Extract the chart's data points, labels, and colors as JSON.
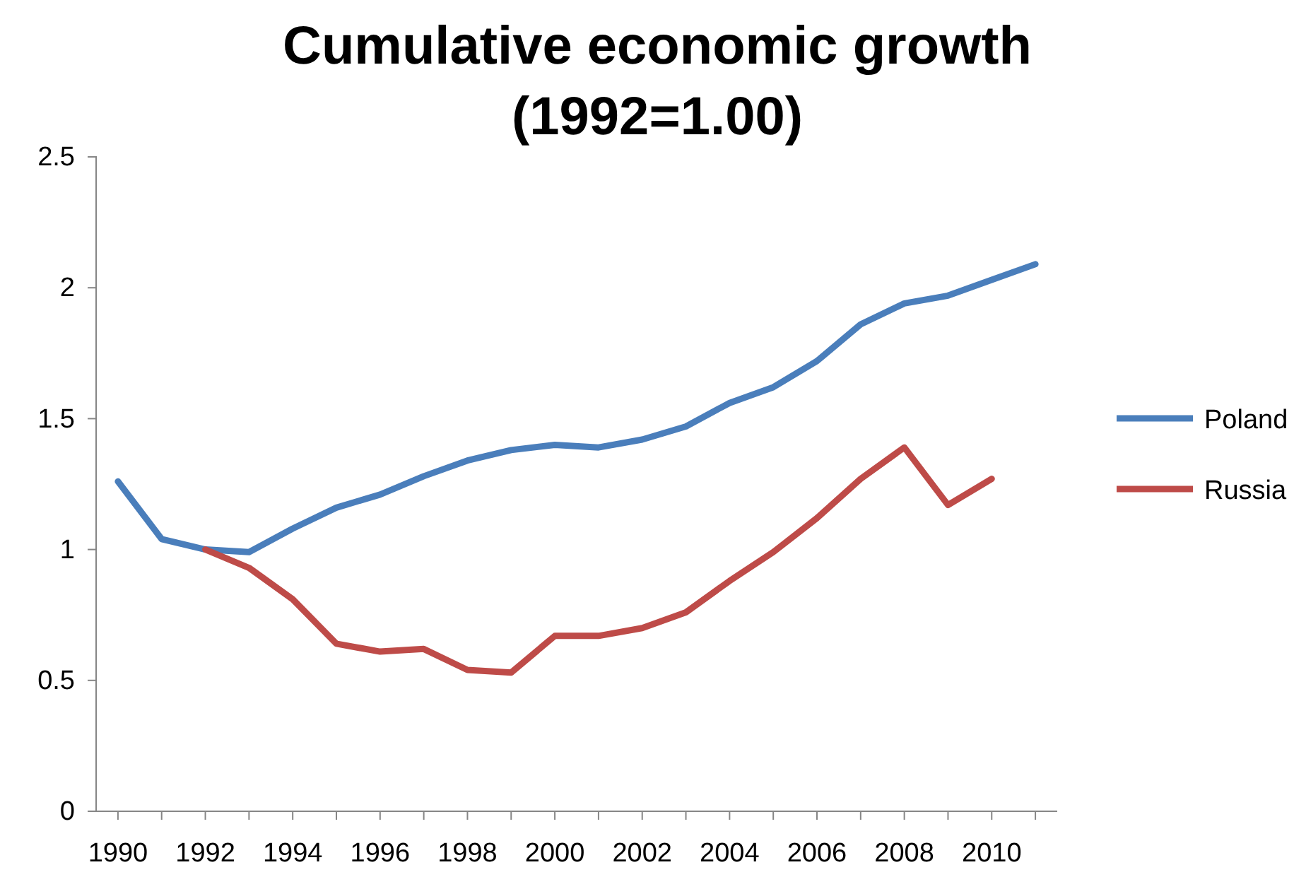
{
  "chart_data": {
    "type": "line",
    "title": "Cumulative economic growth\n(1992=1.00)",
    "categories": [
      "1990",
      null,
      "1992",
      null,
      "1994",
      null,
      "1996",
      null,
      "1998",
      null,
      "2000",
      null,
      "2002",
      null,
      "2004",
      null,
      "2006",
      null,
      "2008",
      null,
      "2010",
      null
    ],
    "series": [
      {
        "name": "Poland",
        "color": "#4a7ebb",
        "values": [
          1.26,
          1.04,
          1.0,
          0.99,
          1.08,
          1.16,
          1.21,
          1.28,
          1.34,
          1.38,
          1.4,
          1.39,
          1.42,
          1.47,
          1.56,
          1.62,
          1.72,
          1.86,
          1.94,
          1.97,
          2.03,
          2.09
        ]
      },
      {
        "name": "Russia",
        "color": "#be4b48",
        "values": [
          null,
          null,
          1.0,
          0.93,
          0.81,
          0.64,
          0.61,
          0.62,
          0.54,
          0.53,
          0.67,
          0.67,
          0.7,
          0.76,
          0.88,
          0.99,
          1.12,
          1.27,
          1.39,
          1.17,
          1.27,
          null
        ]
      }
    ],
    "ylim": [
      0,
      2.5
    ],
    "yticks": [
      0,
      0.5,
      1,
      1.5,
      2,
      2.5
    ],
    "grid": false,
    "legend": "right",
    "marker": "none",
    "line_style": "solid"
  }
}
